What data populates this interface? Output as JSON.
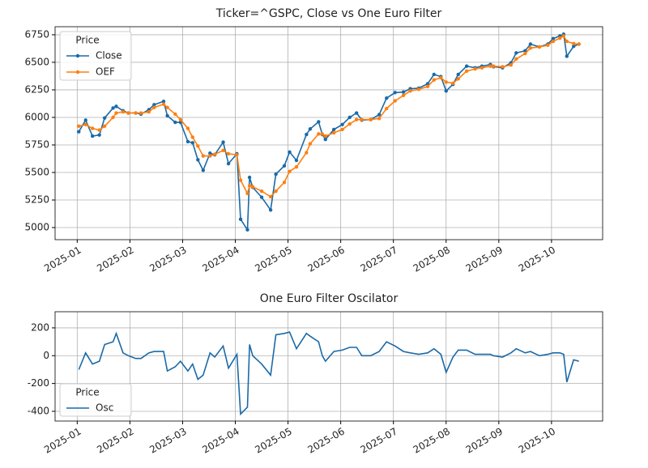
{
  "chart_data": [
    {
      "type": "line",
      "title": "Ticker=^GSPC, Close vs One Euro Filter",
      "x": [
        1.03,
        1.16,
        1.29,
        1.42,
        1.52,
        1.68,
        1.74,
        1.87,
        1.97,
        2.11,
        2.21,
        2.36,
        2.46,
        2.64,
        2.71,
        2.86,
        2.96,
        3.1,
        3.19,
        3.29,
        3.39,
        3.52,
        3.61,
        3.77,
        3.87,
        4.03,
        4.1,
        4.23,
        4.27,
        4.33,
        4.5,
        4.67,
        4.77,
        4.93,
        5.03,
        5.16,
        5.35,
        5.42,
        5.58,
        5.65,
        5.71,
        5.87,
        6.03,
        6.17,
        6.3,
        6.4,
        6.57,
        6.73,
        6.87,
        7.03,
        7.19,
        7.32,
        7.48,
        7.65,
        7.77,
        7.9,
        8.0,
        8.13,
        8.23,
        8.39,
        8.55,
        8.68,
        8.84,
        8.9,
        9.07,
        9.23,
        9.33,
        9.5,
        9.6,
        9.77,
        9.93,
        10.03,
        10.16,
        10.23,
        10.29,
        10.42,
        10.52
      ],
      "series": [
        {
          "name": "Close",
          "color": "#1a6aa8",
          "marker": true,
          "values": [
            5870,
            5975,
            5830,
            5840,
            5995,
            6085,
            6100,
            6060,
            6040,
            6040,
            6030,
            6070,
            6115,
            6145,
            6015,
            5955,
            5955,
            5780,
            5770,
            5615,
            5520,
            5675,
            5660,
            5775,
            5580,
            5670,
            5075,
            4980,
            5455,
            5365,
            5275,
            5160,
            5485,
            5560,
            5685,
            5610,
            5845,
            5895,
            5960,
            5845,
            5800,
            5890,
            5935,
            6000,
            6040,
            5975,
            5980,
            6025,
            6175,
            6225,
            6230,
            6260,
            6265,
            6305,
            6390,
            6370,
            6240,
            6300,
            6390,
            6465,
            6450,
            6465,
            6480,
            6460,
            6450,
            6495,
            6585,
            6605,
            6665,
            6640,
            6665,
            6715,
            6740,
            6755,
            6555,
            6645,
            6665
          ]
        },
        {
          "name": "OEF",
          "color": "#ff7f0e",
          "marker": true,
          "values": [
            5920,
            5935,
            5900,
            5885,
            5920,
            6000,
            6040,
            6050,
            6040,
            6040,
            6040,
            6050,
            6090,
            6120,
            6090,
            6030,
            5980,
            5900,
            5820,
            5740,
            5650,
            5650,
            5665,
            5700,
            5670,
            5660,
            5430,
            5310,
            5380,
            5370,
            5330,
            5280,
            5330,
            5410,
            5510,
            5550,
            5680,
            5760,
            5850,
            5850,
            5830,
            5860,
            5890,
            5940,
            5980,
            5980,
            5980,
            5990,
            6080,
            6150,
            6200,
            6240,
            6255,
            6280,
            6340,
            6360,
            6320,
            6310,
            6350,
            6420,
            6440,
            6450,
            6465,
            6465,
            6460,
            6475,
            6530,
            6580,
            6630,
            6640,
            6655,
            6690,
            6720,
            6740,
            6690,
            6670,
            6665
          ]
        }
      ],
      "xlim": [
        0.58,
        10.97
      ],
      "xticks": [
        {
          "value": 1,
          "label": "2025-01"
        },
        {
          "value": 2,
          "label": "2025-02"
        },
        {
          "value": 3,
          "label": "2025-03"
        },
        {
          "value": 4,
          "label": "2025-04"
        },
        {
          "value": 5,
          "label": "2025-05"
        },
        {
          "value": 6,
          "label": "2025-06"
        },
        {
          "value": 7,
          "label": "2025-07"
        },
        {
          "value": 8,
          "label": "2025-08"
        },
        {
          "value": 9,
          "label": "2025-09"
        },
        {
          "value": 10,
          "label": "2025-10"
        }
      ],
      "ylim": [
        4890,
        6823
      ],
      "yticks": [
        5000,
        5250,
        5500,
        5750,
        6000,
        6250,
        6500,
        6750
      ],
      "grid": true,
      "legend_title": "Price",
      "legend": "upper left"
    },
    {
      "type": "line",
      "title": "One Euro Filter Oscilator",
      "x": [
        1.03,
        1.16,
        1.29,
        1.42,
        1.52,
        1.68,
        1.74,
        1.87,
        1.97,
        2.11,
        2.21,
        2.36,
        2.46,
        2.64,
        2.71,
        2.86,
        2.96,
        3.1,
        3.19,
        3.29,
        3.39,
        3.52,
        3.61,
        3.77,
        3.87,
        4.03,
        4.1,
        4.23,
        4.27,
        4.33,
        4.5,
        4.67,
        4.77,
        4.93,
        5.03,
        5.16,
        5.35,
        5.42,
        5.58,
        5.65,
        5.71,
        5.87,
        6.03,
        6.17,
        6.3,
        6.4,
        6.57,
        6.73,
        6.87,
        7.03,
        7.19,
        7.32,
        7.48,
        7.65,
        7.77,
        7.9,
        8.0,
        8.13,
        8.23,
        8.39,
        8.55,
        8.68,
        8.84,
        8.9,
        9.07,
        9.23,
        9.33,
        9.5,
        9.6,
        9.77,
        9.93,
        10.03,
        10.16,
        10.23,
        10.29,
        10.42,
        10.52
      ],
      "series": [
        {
          "name": "Osc",
          "color": "#1a6aa8",
          "marker": false,
          "values": [
            -100,
            20,
            -60,
            -40,
            80,
            100,
            160,
            20,
            0,
            -20,
            -20,
            20,
            30,
            30,
            -110,
            -80,
            -40,
            -110,
            -60,
            -170,
            -140,
            20,
            -10,
            70,
            -90,
            10,
            -420,
            -370,
            80,
            0,
            -60,
            -140,
            150,
            160,
            170,
            50,
            160,
            140,
            100,
            0,
            -40,
            30,
            40,
            60,
            60,
            0,
            0,
            30,
            100,
            70,
            30,
            20,
            10,
            20,
            50,
            10,
            -120,
            -10,
            40,
            40,
            10,
            10,
            10,
            0,
            -10,
            20,
            50,
            20,
            30,
            0,
            10,
            20,
            20,
            10,
            -190,
            -30,
            -40
          ]
        }
      ],
      "xlim": [
        0.58,
        10.97
      ],
      "xticks": [
        {
          "value": 1,
          "label": "2025-01"
        },
        {
          "value": 2,
          "label": "2025-02"
        },
        {
          "value": 3,
          "label": "2025-03"
        },
        {
          "value": 4,
          "label": "2025-04"
        },
        {
          "value": 5,
          "label": "2025-05"
        },
        {
          "value": 6,
          "label": "2025-06"
        },
        {
          "value": 7,
          "label": "2025-07"
        },
        {
          "value": 8,
          "label": "2025-08"
        },
        {
          "value": 9,
          "label": "2025-09"
        },
        {
          "value": 10,
          "label": "2025-10"
        }
      ],
      "ylim": [
        -470,
        316
      ],
      "yticks": [
        -400,
        -200,
        0,
        200
      ],
      "grid": true,
      "legend_title": "Price",
      "legend": "lower left"
    }
  ]
}
